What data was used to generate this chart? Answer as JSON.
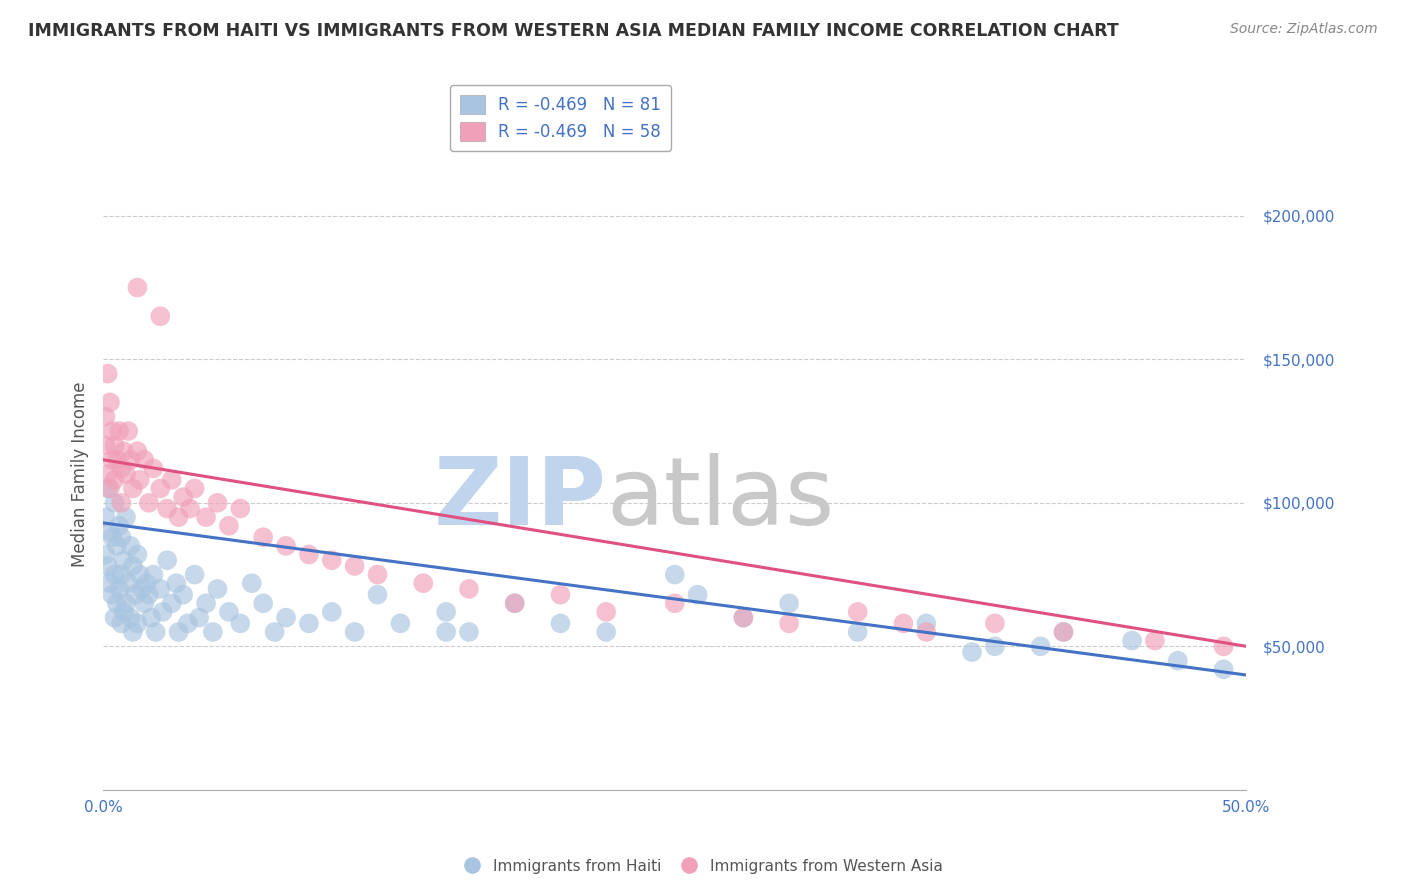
{
  "title": "IMMIGRANTS FROM HAITI VS IMMIGRANTS FROM WESTERN ASIA MEDIAN FAMILY INCOME CORRELATION CHART",
  "source": "Source: ZipAtlas.com",
  "ylabel": "Median Family Income",
  "xlabel": "",
  "xlim": [
    0.0,
    0.5
  ],
  "ylim": [
    0,
    220000
  ],
  "ytick_values": [
    0,
    50000,
    100000,
    150000,
    200000
  ],
  "ytick_labels": [
    "",
    "$50,000",
    "$100,000",
    "$150,000",
    "$200,000"
  ],
  "haiti_R": -0.469,
  "haiti_N": 81,
  "western_asia_R": -0.469,
  "western_asia_N": 58,
  "haiti_color": "#a8c4e0",
  "western_asia_color": "#f0a0b8",
  "haiti_line_color": "#4472c4",
  "western_asia_line_color": "#e05080",
  "watermark_zip": "ZIP",
  "watermark_atlas": "atlas",
  "watermark_color": "#c8d8ee",
  "watermark_atlas_color": "#c8c8c8",
  "background_color": "#ffffff",
  "grid_color": "#cccccc",
  "haiti_x": [
    0.001,
    0.001,
    0.002,
    0.002,
    0.003,
    0.003,
    0.004,
    0.004,
    0.005,
    0.005,
    0.005,
    0.006,
    0.006,
    0.007,
    0.007,
    0.008,
    0.008,
    0.008,
    0.009,
    0.009,
    0.01,
    0.01,
    0.011,
    0.012,
    0.012,
    0.013,
    0.013,
    0.014,
    0.015,
    0.015,
    0.016,
    0.017,
    0.018,
    0.019,
    0.02,
    0.021,
    0.022,
    0.023,
    0.025,
    0.026,
    0.028,
    0.03,
    0.032,
    0.033,
    0.035,
    0.037,
    0.04,
    0.042,
    0.045,
    0.048,
    0.05,
    0.055,
    0.06,
    0.065,
    0.07,
    0.075,
    0.08,
    0.09,
    0.1,
    0.11,
    0.12,
    0.13,
    0.15,
    0.16,
    0.18,
    0.2,
    0.22,
    0.25,
    0.28,
    0.3,
    0.33,
    0.36,
    0.39,
    0.42,
    0.45,
    0.47,
    0.49,
    0.38,
    0.41,
    0.26,
    0.15
  ],
  "haiti_y": [
    95000,
    82000,
    105000,
    78000,
    90000,
    72000,
    88000,
    68000,
    100000,
    75000,
    60000,
    85000,
    65000,
    92000,
    70000,
    88000,
    75000,
    58000,
    80000,
    62000,
    95000,
    65000,
    72000,
    85000,
    60000,
    78000,
    55000,
    68000,
    82000,
    58000,
    75000,
    70000,
    65000,
    72000,
    68000,
    60000,
    75000,
    55000,
    70000,
    62000,
    80000,
    65000,
    72000,
    55000,
    68000,
    58000,
    75000,
    60000,
    65000,
    55000,
    70000,
    62000,
    58000,
    72000,
    65000,
    55000,
    60000,
    58000,
    62000,
    55000,
    68000,
    58000,
    62000,
    55000,
    65000,
    58000,
    55000,
    75000,
    60000,
    65000,
    55000,
    58000,
    50000,
    55000,
    52000,
    45000,
    42000,
    48000,
    50000,
    68000,
    55000
  ],
  "western_asia_x": [
    0.001,
    0.001,
    0.002,
    0.002,
    0.003,
    0.003,
    0.004,
    0.004,
    0.005,
    0.005,
    0.006,
    0.007,
    0.008,
    0.008,
    0.009,
    0.01,
    0.011,
    0.012,
    0.013,
    0.015,
    0.016,
    0.018,
    0.02,
    0.022,
    0.025,
    0.028,
    0.03,
    0.033,
    0.035,
    0.038,
    0.04,
    0.045,
    0.05,
    0.055,
    0.06,
    0.07,
    0.08,
    0.09,
    0.1,
    0.11,
    0.12,
    0.14,
    0.16,
    0.18,
    0.2,
    0.22,
    0.25,
    0.28,
    0.3,
    0.33,
    0.36,
    0.39,
    0.42,
    0.46,
    0.49,
    0.35,
    0.015,
    0.025
  ],
  "western_asia_y": [
    130000,
    120000,
    145000,
    110000,
    135000,
    105000,
    125000,
    115000,
    120000,
    108000,
    115000,
    125000,
    112000,
    100000,
    118000,
    110000,
    125000,
    115000,
    105000,
    118000,
    108000,
    115000,
    100000,
    112000,
    105000,
    98000,
    108000,
    95000,
    102000,
    98000,
    105000,
    95000,
    100000,
    92000,
    98000,
    88000,
    85000,
    82000,
    80000,
    78000,
    75000,
    72000,
    70000,
    65000,
    68000,
    62000,
    65000,
    60000,
    58000,
    62000,
    55000,
    58000,
    55000,
    52000,
    50000,
    58000,
    175000,
    165000
  ]
}
